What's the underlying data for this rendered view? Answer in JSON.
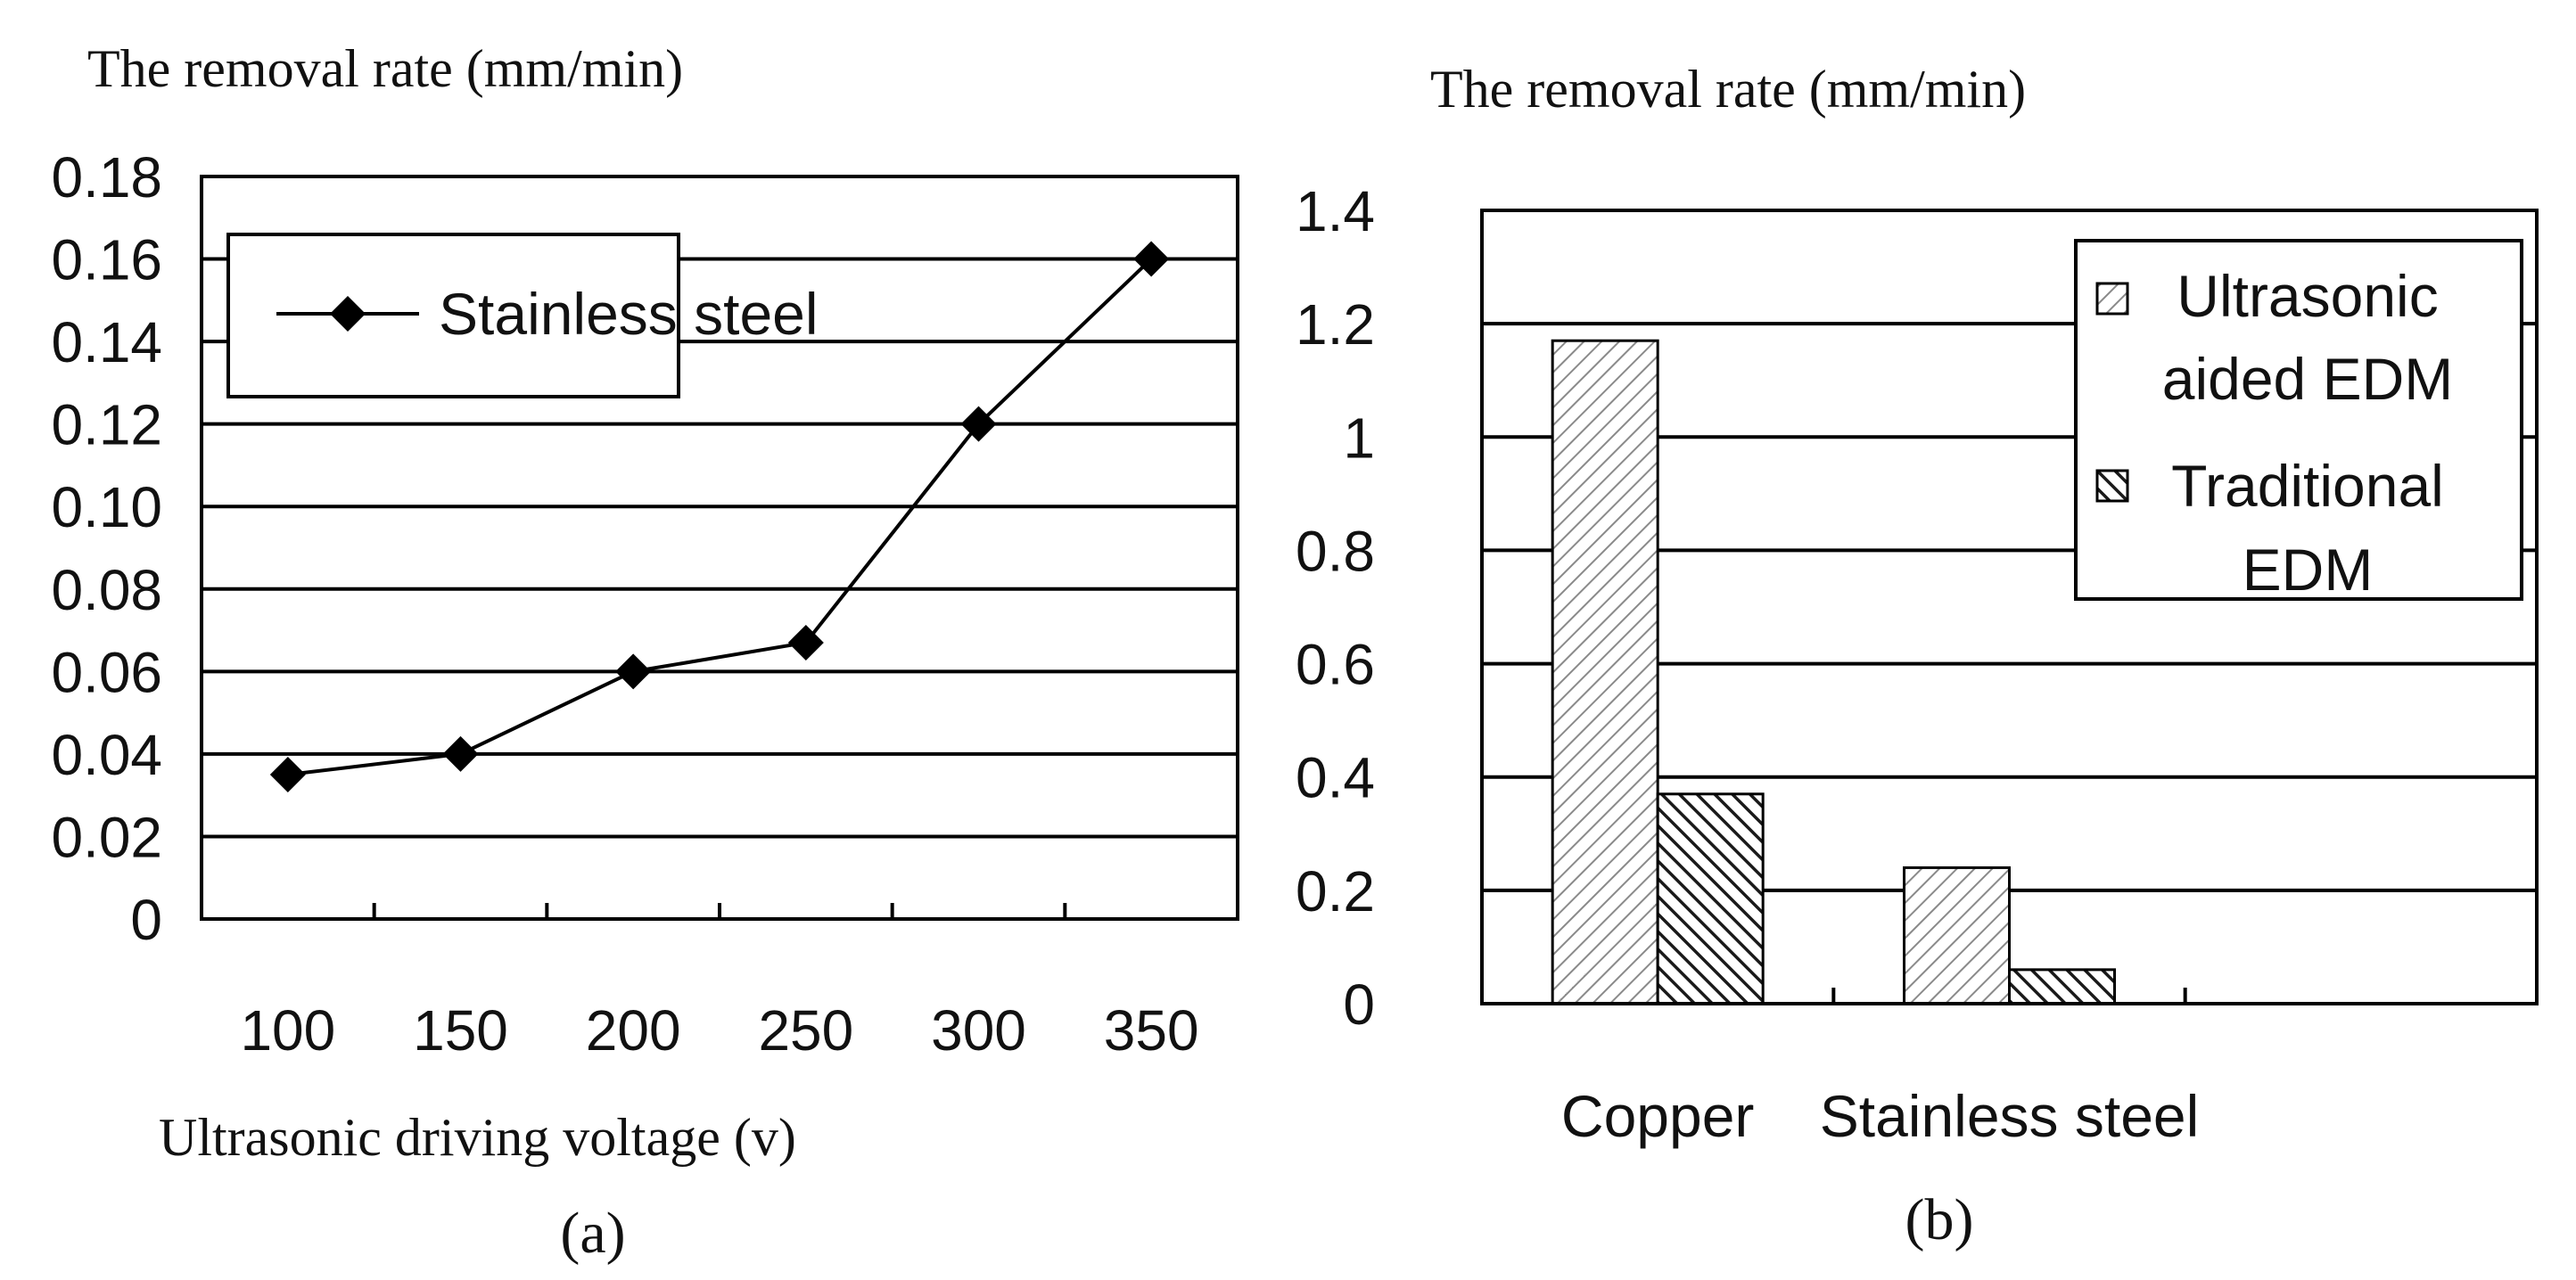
{
  "panel_labels": {
    "a": "(a)",
    "b": "(b)"
  },
  "chart_data": [
    {
      "type": "line",
      "title": "The removal rate (mm/min)",
      "xlabel": "Ultrasonic driving voltage (v)",
      "ylabel": "The removal rate (mm/min)",
      "categories": [
        "100",
        "150",
        "200",
        "250",
        "300",
        "350"
      ],
      "series": [
        {
          "name": "Stainless steel",
          "values": [
            0.035,
            0.04,
            0.06,
            0.067,
            0.12,
            0.16
          ]
        }
      ],
      "yticks": [
        "0",
        "0.02",
        "0.04",
        "0.06",
        "0.08",
        "0.10",
        "0.12",
        "0.14",
        "0.16",
        "0.18"
      ],
      "ylim": [
        0,
        0.18
      ],
      "grid": true,
      "legend": "top-left",
      "colors": {
        "line": "#000000",
        "marker": "#000000"
      }
    },
    {
      "type": "bar",
      "title": "The removal rate (mm/min)",
      "xlabel": "",
      "ylabel": "The removal rate (mm/min)",
      "categories": [
        "Copper",
        "Stainless steel"
      ],
      "series": [
        {
          "name": "Ultrasonic aided EDM",
          "legend_lines": [
            "Ultrasonic",
            "aided EDM"
          ],
          "values": [
            1.17,
            0.24
          ],
          "pattern": "light-hatch"
        },
        {
          "name": "Traditional EDM",
          "legend_lines": [
            "Traditional",
            "EDM"
          ],
          "values": [
            0.37,
            0.06
          ],
          "pattern": "dark-hatch"
        }
      ],
      "yticks": [
        "0",
        "0.2",
        "0.4",
        "0.6",
        "0.8",
        "1",
        "1.2",
        "1.4"
      ],
      "ylim": [
        0,
        1.4
      ],
      "grid": true,
      "legend": "top-right",
      "colors": {
        "light_hatch": "#8a8a8a",
        "dark_hatch": "#1a1a1a"
      }
    }
  ]
}
